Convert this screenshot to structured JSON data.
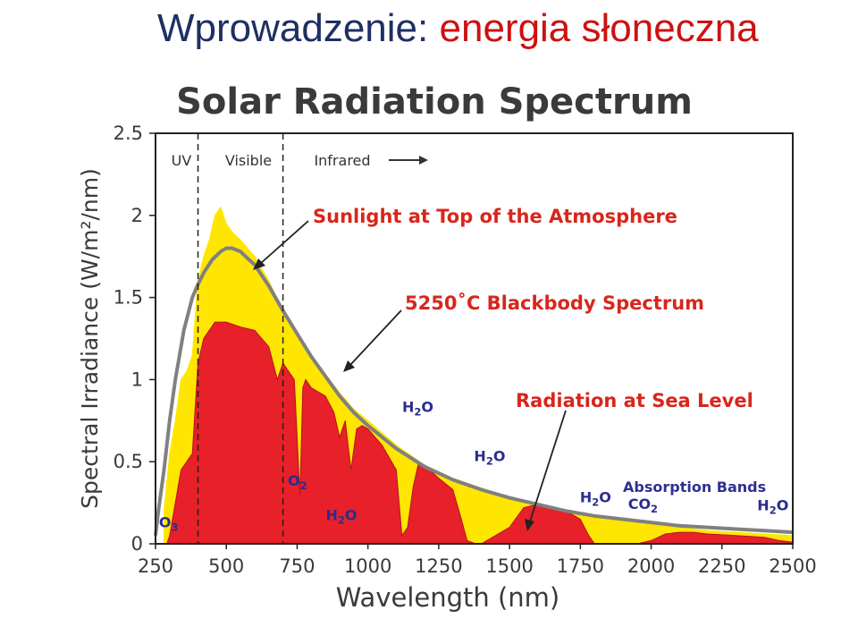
{
  "slide": {
    "title_part1": "Wprowadzenie:",
    "title_part2": "energia słoneczna"
  },
  "chart_data": {
    "type": "area",
    "title": "Solar Radiation Spectrum",
    "xlabel": "Wavelength (nm)",
    "ylabel": "Spectral Irradiance (W/m²/nm)",
    "xlim": [
      250,
      2500
    ],
    "ylim": [
      0,
      2.5
    ],
    "x_ticks": [
      250,
      500,
      750,
      1000,
      1250,
      1500,
      1750,
      2000,
      2250,
      2500
    ],
    "y_ticks": [
      0,
      0.5,
      1,
      1.5,
      2,
      2.5
    ],
    "y_tick_labels": [
      "0",
      "0.5",
      "1",
      "1.5",
      "2",
      "2.5"
    ],
    "grid": false,
    "colors": {
      "sunlight": "#ffe600",
      "sea_level": "#e8202a",
      "blackbody": "#808080",
      "label_red": "#d8261c",
      "label_blue": "#2b2d8f",
      "band_label_blue": "#2e3191"
    },
    "region_boundaries": [
      400,
      700
    ],
    "region_labels": [
      "UV",
      "Visible",
      "Infrared"
    ],
    "series": [
      {
        "name": "Sunlight at Top of the Atmosphere",
        "x": [
          280,
          300,
          320,
          340,
          360,
          380,
          400,
          420,
          440,
          460,
          480,
          500,
          520,
          550,
          600,
          650,
          700,
          750,
          800,
          850,
          900,
          950,
          1000,
          1100,
          1200,
          1300,
          1400,
          1500,
          1600,
          1700,
          1800,
          1900,
          2000,
          2100,
          2200,
          2300,
          2400,
          2500
        ],
        "y": [
          0.2,
          0.55,
          0.75,
          1.0,
          1.05,
          1.15,
          1.6,
          1.75,
          1.85,
          2.0,
          2.05,
          1.95,
          1.9,
          1.85,
          1.75,
          1.6,
          1.42,
          1.28,
          1.15,
          1.03,
          0.92,
          0.82,
          0.75,
          0.6,
          0.48,
          0.4,
          0.34,
          0.28,
          0.24,
          0.2,
          0.17,
          0.14,
          0.12,
          0.1,
          0.08,
          0.07,
          0.06,
          0.05
        ]
      },
      {
        "name": "Radiation at Sea Level",
        "x": [
          290,
          300,
          320,
          340,
          360,
          380,
          400,
          420,
          440,
          460,
          480,
          500,
          550,
          600,
          650,
          680,
          700,
          720,
          740,
          760,
          770,
          780,
          800,
          850,
          880,
          900,
          920,
          940,
          960,
          980,
          1000,
          1050,
          1100,
          1120,
          1140,
          1160,
          1180,
          1200,
          1250,
          1300,
          1330,
          1350,
          1380,
          1400,
          1450,
          1500,
          1550,
          1600,
          1650,
          1700,
          1750,
          1780,
          1800,
          1850,
          1900,
          1950,
          2000,
          2050,
          2100,
          2150,
          2200,
          2300,
          2400,
          2450,
          2500
        ],
        "y": [
          0.0,
          0.05,
          0.25,
          0.45,
          0.5,
          0.55,
          1.1,
          1.25,
          1.3,
          1.35,
          1.35,
          1.35,
          1.32,
          1.3,
          1.2,
          1.0,
          1.1,
          1.05,
          1.0,
          0.3,
          0.95,
          1.0,
          0.95,
          0.9,
          0.8,
          0.65,
          0.75,
          0.45,
          0.7,
          0.72,
          0.7,
          0.6,
          0.45,
          0.05,
          0.1,
          0.35,
          0.5,
          0.48,
          0.4,
          0.33,
          0.15,
          0.02,
          0.0,
          0.0,
          0.05,
          0.1,
          0.22,
          0.24,
          0.22,
          0.2,
          0.15,
          0.05,
          0.0,
          0.0,
          0.0,
          0.0,
          0.02,
          0.06,
          0.07,
          0.07,
          0.06,
          0.05,
          0.04,
          0.02,
          0.01
        ]
      },
      {
        "name": "5250˚C Blackbody Spectrum",
        "x": [
          250,
          260,
          280,
          300,
          320,
          350,
          380,
          400,
          420,
          450,
          480,
          500,
          520,
          550,
          580,
          600,
          650,
          700,
          750,
          800,
          850,
          900,
          950,
          1000,
          1100,
          1200,
          1300,
          1400,
          1500,
          1600,
          1700,
          1800,
          1900,
          2000,
          2100,
          2200,
          2300,
          2400,
          2500
        ],
        "y": [
          0.05,
          0.2,
          0.45,
          0.75,
          1.0,
          1.3,
          1.5,
          1.58,
          1.65,
          1.73,
          1.78,
          1.8,
          1.8,
          1.78,
          1.73,
          1.7,
          1.57,
          1.42,
          1.28,
          1.14,
          1.02,
          0.9,
          0.8,
          0.72,
          0.58,
          0.47,
          0.39,
          0.33,
          0.28,
          0.24,
          0.2,
          0.17,
          0.15,
          0.13,
          0.11,
          0.1,
          0.09,
          0.08,
          0.07
        ]
      }
    ],
    "annotations": {
      "sunlight_label": "Sunlight at Top of the Atmosphere",
      "blackbody_label": "5250˚C Blackbody Spectrum",
      "sealevel_label": "Radiation at Sea Level",
      "absorption_label": "Absorption Bands",
      "bands": [
        {
          "main": "O",
          "sub": "3",
          "x": 300,
          "y": 0.1
        },
        {
          "main": "O",
          "sub": "2",
          "x": 755,
          "y": 0.3
        },
        {
          "main": "H",
          "sub": "2",
          "suffix": "O",
          "x": 870,
          "y": 0.1
        },
        {
          "main": "H",
          "sub": "2",
          "suffix": "O",
          "x": 1140,
          "y": 0.75
        },
        {
          "main": "H",
          "sub": "2",
          "suffix": "O",
          "x": 1400,
          "y": 0.45
        },
        {
          "main": "H",
          "sub": "2",
          "suffix": "O",
          "x": 1780,
          "y": 0.2
        },
        {
          "main": "CO",
          "sub": "2",
          "x": 1950,
          "y": 0.17
        },
        {
          "main": "H",
          "sub": "2",
          "suffix": "O",
          "x": 2400,
          "y": 0.15
        }
      ]
    }
  }
}
